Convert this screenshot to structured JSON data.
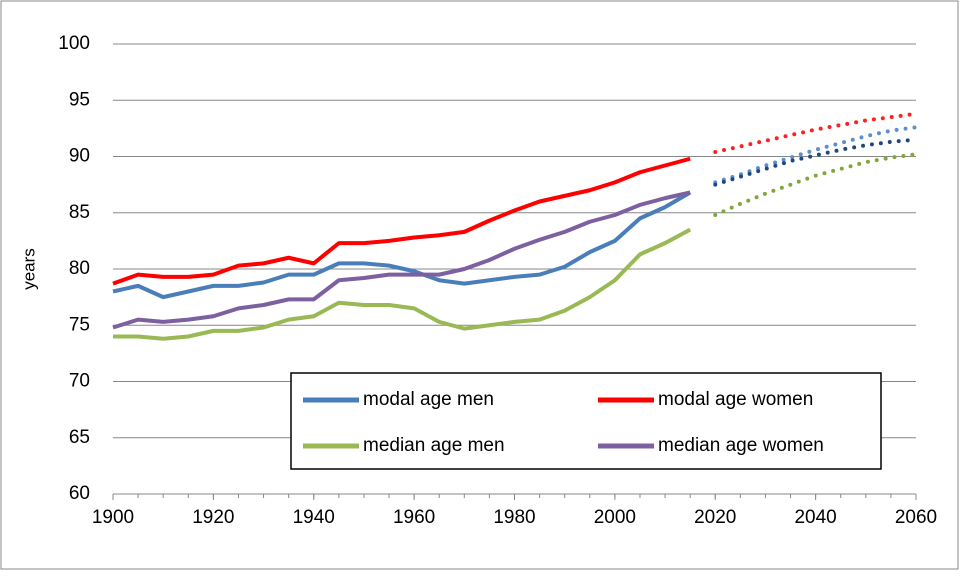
{
  "chart_data": {
    "type": "line",
    "y_label": "years",
    "x": [
      1900,
      1905,
      1910,
      1915,
      1920,
      1925,
      1930,
      1935,
      1940,
      1945,
      1950,
      1955,
      1960,
      1965,
      1970,
      1975,
      1980,
      1985,
      1990,
      1995,
      2000,
      2005,
      2010,
      2015,
      2020,
      2025,
      2030,
      2035,
      2040,
      2045,
      2050,
      2055,
      2060
    ],
    "projected_from": 2020,
    "series": [
      {
        "name": "modal age men",
        "color": "#4a7ebb",
        "projection_color": "#5b8fd0",
        "values": [
          78,
          78.5,
          77.5,
          78,
          78.5,
          78.5,
          78.8,
          79.5,
          79.5,
          80.5,
          80.5,
          80.3,
          79.8,
          79,
          78.7,
          79,
          79.3,
          79.5,
          80.2,
          81.5,
          82.5,
          84.5,
          85.5,
          86.8,
          87.7,
          88.4,
          89.2,
          89.9,
          90.6,
          91.2,
          91.8,
          92.3,
          92.6
        ]
      },
      {
        "name": "modal age women",
        "color": "#ff0000",
        "projection_color": "#ff2020",
        "values": [
          78.7,
          79.5,
          79.3,
          79.3,
          79.5,
          80.3,
          80.5,
          81,
          80.5,
          82.3,
          82.3,
          82.5,
          82.8,
          83,
          83.3,
          84.3,
          85.2,
          86,
          86.5,
          87,
          87.7,
          88.6,
          89.2,
          89.8,
          90.4,
          90.9,
          91.4,
          91.9,
          92.4,
          92.8,
          93.2,
          93.5,
          93.8
        ]
      },
      {
        "name": "median age men",
        "color": "#98b954",
        "projection_color": "#7fa83c",
        "values": [
          74,
          74,
          73.8,
          74,
          74.5,
          74.5,
          74.8,
          75.5,
          75.8,
          77,
          76.8,
          76.8,
          76.5,
          75.3,
          74.7,
          75,
          75.3,
          75.5,
          76.3,
          77.5,
          79,
          81.3,
          82.3,
          83.5,
          84.8,
          85.8,
          86.7,
          87.5,
          88.3,
          88.9,
          89.5,
          89.9,
          90.2
        ]
      },
      {
        "name": "median age women",
        "color": "#7d60a0",
        "projection_color": "#1f497d",
        "values": [
          74.8,
          75.5,
          75.3,
          75.5,
          75.8,
          76.5,
          76.8,
          77.3,
          77.3,
          79,
          79.2,
          79.5,
          79.5,
          79.5,
          80,
          80.8,
          81.8,
          82.6,
          83.3,
          84.2,
          84.8,
          85.7,
          86.3,
          86.8,
          87.5,
          88.2,
          88.9,
          89.6,
          90.1,
          90.6,
          91,
          91.3,
          91.5
        ]
      }
    ],
    "xlim": [
      1900,
      2060
    ],
    "xticks": [
      1900,
      1920,
      1940,
      1960,
      1980,
      2000,
      2020,
      2040,
      2060
    ],
    "ylim": [
      60,
      100
    ],
    "yticks": [
      60,
      65,
      70,
      75,
      80,
      85,
      90,
      95,
      100
    ],
    "grid": true,
    "legend": "bottom-right"
  }
}
